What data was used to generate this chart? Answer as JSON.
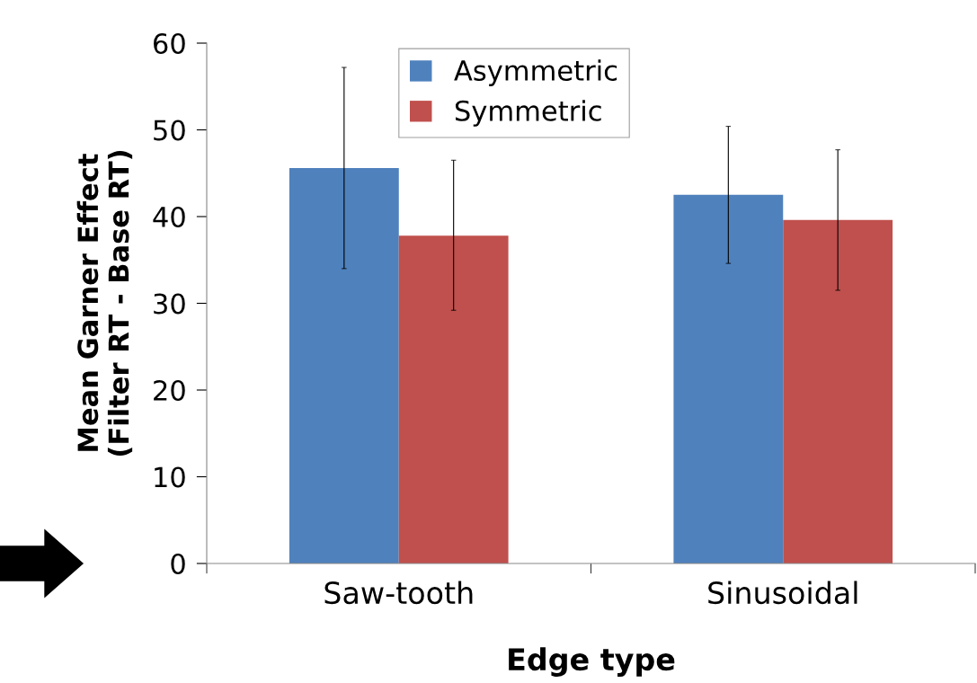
{
  "chart_data": {
    "type": "bar",
    "xlabel": "Edge type",
    "ylabel": "Mean Garner Effect\n(Filter RT - Base RT)",
    "categories": [
      "Saw-tooth",
      "Sinusoidal"
    ],
    "series": [
      {
        "name": "Asymmetric",
        "color": "#4f81bd",
        "values": [
          45.6,
          42.5
        ],
        "errors": [
          [
            34.0,
            57.2
          ],
          [
            34.6,
            50.4
          ]
        ]
      },
      {
        "name": "Symmetric",
        "color": "#c0504d",
        "values": [
          37.8,
          39.6
        ],
        "errors": [
          [
            29.2,
            46.5
          ],
          [
            31.5,
            47.7
          ]
        ]
      }
    ],
    "ylim": [
      0,
      60
    ],
    "yticks": [
      0,
      10,
      20,
      30,
      40,
      50,
      60
    ],
    "grid": false,
    "legend": "top"
  }
}
